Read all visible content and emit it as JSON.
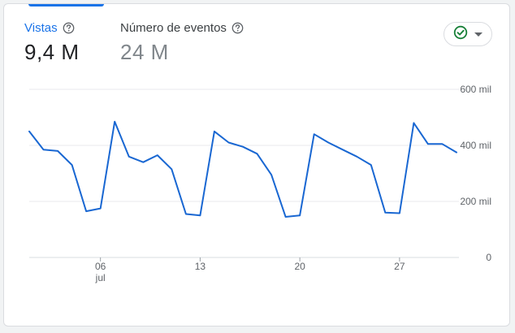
{
  "metrics": {
    "views": {
      "label": "Vistas",
      "value": "9,4 M",
      "icon": "help-circle-icon"
    },
    "events": {
      "label": "Número de eventos",
      "value": "24 M",
      "icon": "help-circle-icon"
    }
  },
  "status_filter": {
    "icon": "check-circle-icon",
    "dropdown_icon": "caret-down-icon"
  },
  "colors": {
    "accent": "#1a73e8",
    "line": "#1967d2",
    "check": "#188038",
    "grid": "#e8eaed"
  },
  "chart_data": {
    "type": "line",
    "x_start_day": 1,
    "x_end_day": 31,
    "x_month": "jul",
    "x_ticks": [
      {
        "day": 6,
        "label": "06",
        "sublabel": "jul"
      },
      {
        "day": 13,
        "label": "13",
        "sublabel": ""
      },
      {
        "day": 20,
        "label": "20",
        "sublabel": ""
      },
      {
        "day": 27,
        "label": "27",
        "sublabel": ""
      }
    ],
    "y_ticks": [
      {
        "value": 600000,
        "label": "600 mil"
      },
      {
        "value": 400000,
        "label": "400 mil"
      },
      {
        "value": 200000,
        "label": "200 mil"
      },
      {
        "value": 0,
        "label": "0"
      }
    ],
    "ylim": [
      0,
      600000
    ],
    "grid": true,
    "series": [
      {
        "values": [
          450000,
          385000,
          380000,
          330000,
          165000,
          175000,
          485000,
          360000,
          340000,
          365000,
          315000,
          155000,
          150000,
          450000,
          410000,
          395000,
          370000,
          295000,
          145000,
          150000,
          440000,
          410000,
          385000,
          360000,
          330000,
          160000,
          158000,
          480000,
          405000,
          405000,
          375000
        ]
      }
    ]
  }
}
